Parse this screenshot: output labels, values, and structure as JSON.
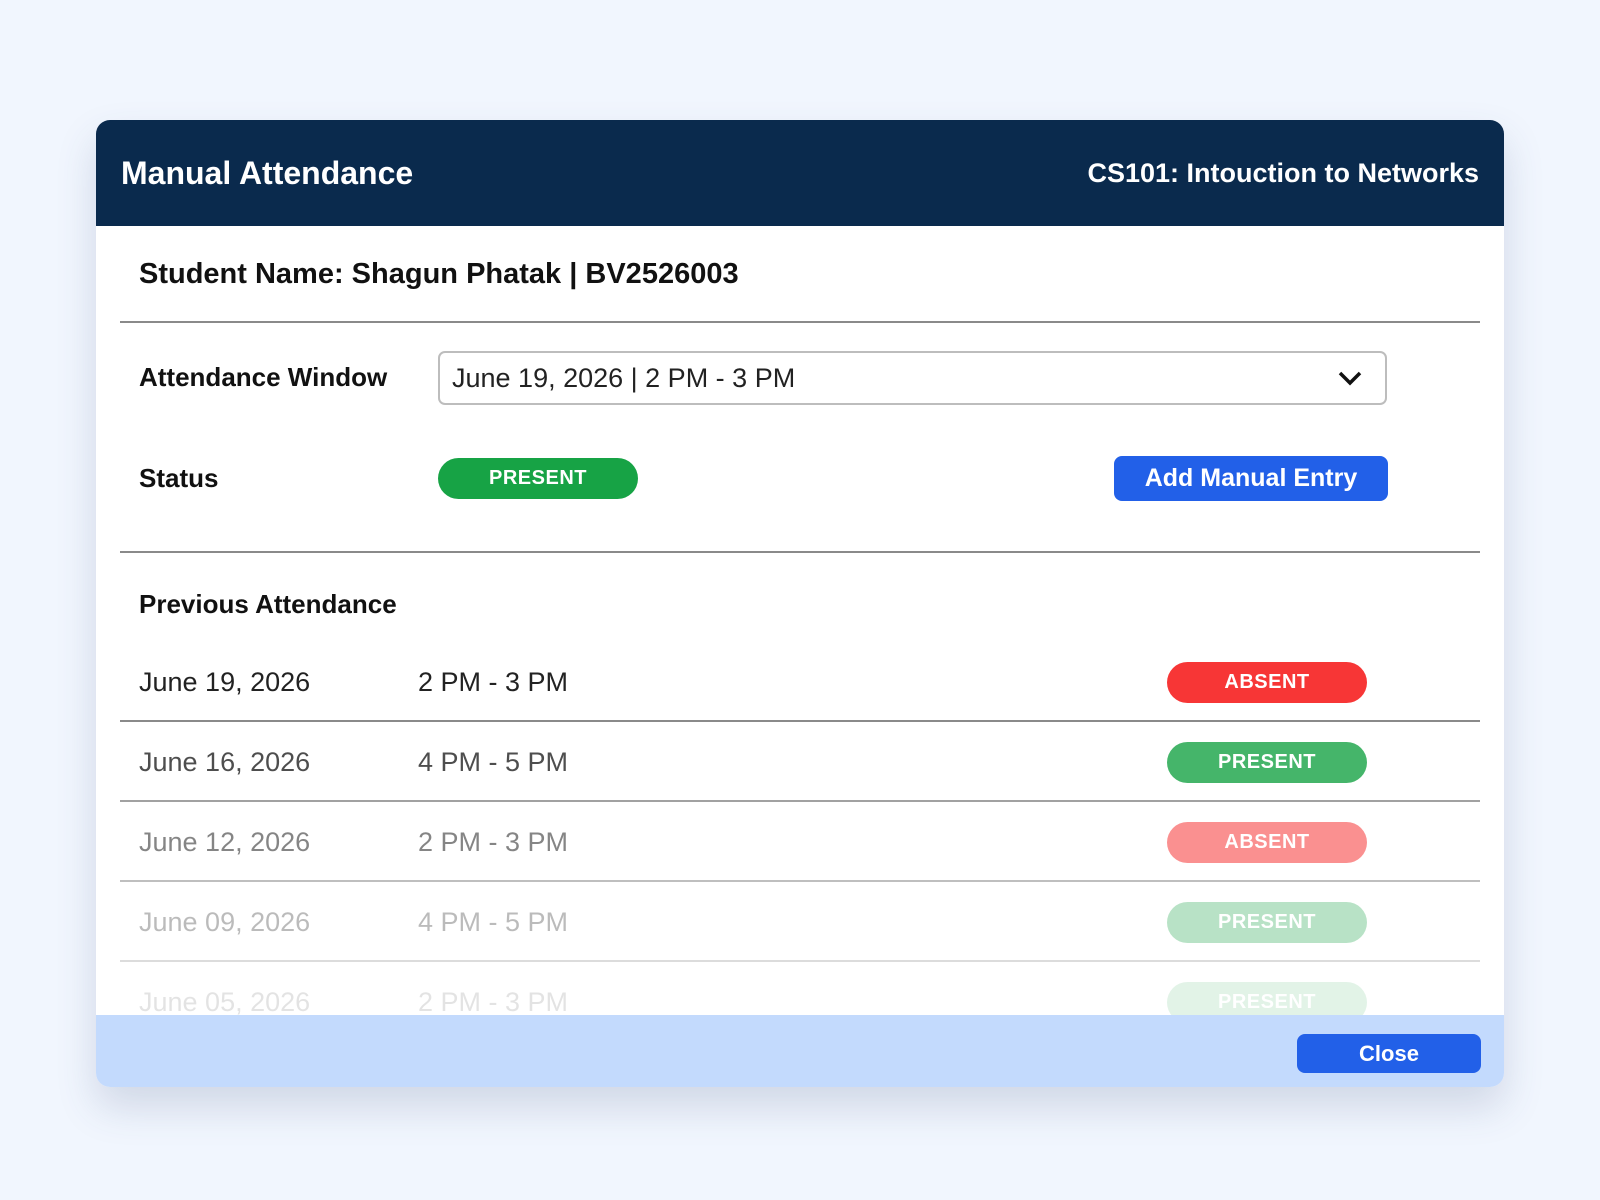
{
  "header": {
    "title": "Manual Attendance",
    "course": "CS101: Intouction to Networks"
  },
  "student": "Student Name: Shagun Phatak | BV2526003",
  "form": {
    "window_label": "Attendance Window",
    "window_value": "June 19, 2026 | 2 PM - 3 PM",
    "status_label": "Status",
    "status_value": "PRESENT",
    "add_button": "Add Manual Entry"
  },
  "history": {
    "title": "Previous Attendance",
    "rows": [
      {
        "date": "June 19, 2026",
        "time": "2 PM - 3 PM",
        "status": "ABSENT"
      },
      {
        "date": "June 16, 2026",
        "time": "4 PM - 5 PM",
        "status": "PRESENT"
      },
      {
        "date": "June 12, 2026",
        "time": "2 PM - 3 PM",
        "status": "ABSENT"
      },
      {
        "date": "June 09, 2026",
        "time": "4 PM - 5 PM",
        "status": "PRESENT"
      },
      {
        "date": "June 05, 2026",
        "time": "2 PM - 3 PM",
        "status": "PRESENT"
      }
    ]
  },
  "footer": {
    "close": "Close"
  }
}
